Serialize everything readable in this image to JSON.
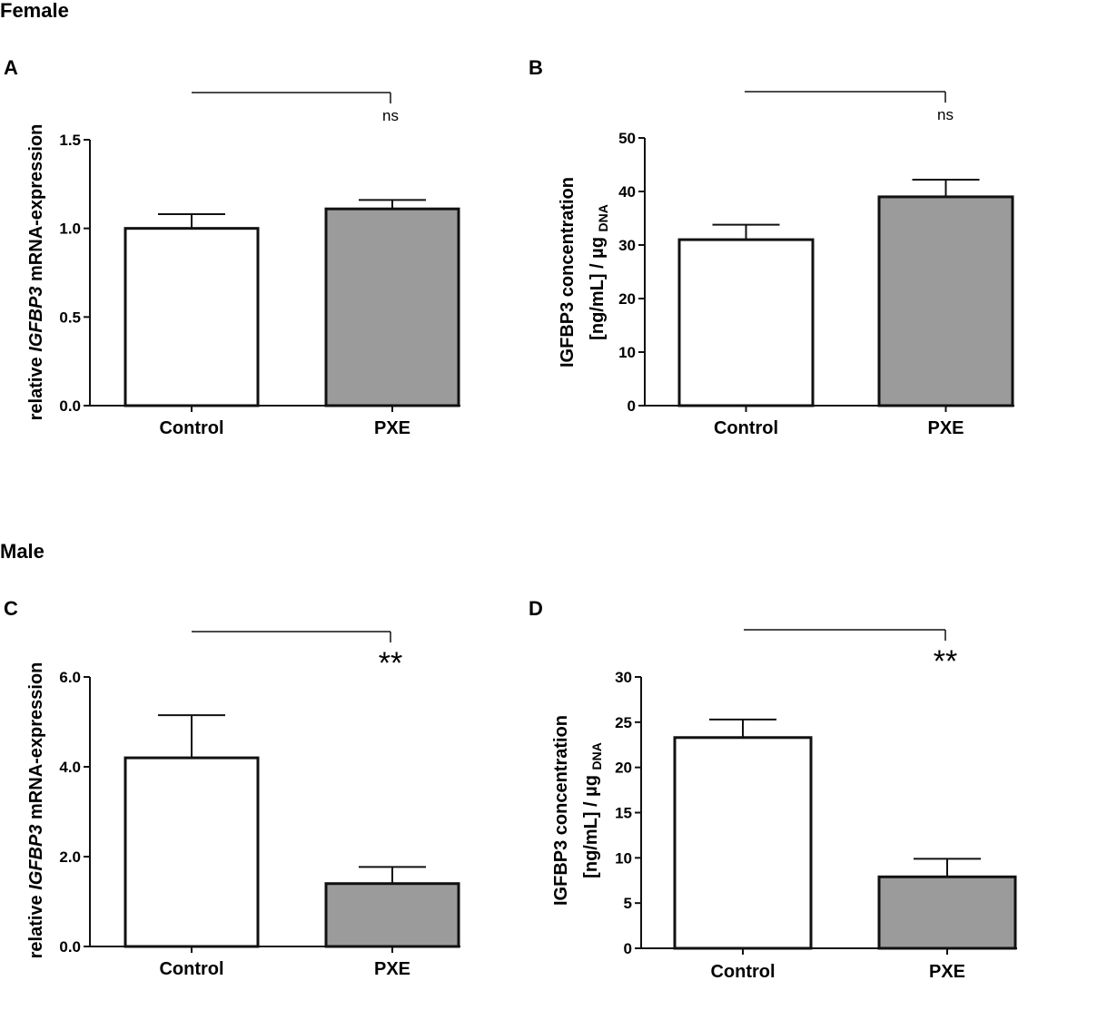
{
  "sections": {
    "female": "Female",
    "male": "Male"
  },
  "colors": {
    "control": "#ffffff",
    "pxe": "#9b9b9b",
    "stroke": "#111111"
  },
  "chart_data": [
    {
      "panel": "A",
      "type": "bar",
      "categories": [
        "Control",
        "PXE"
      ],
      "values": [
        1.0,
        1.11
      ],
      "errors": [
        0.08,
        0.05
      ],
      "ylim": [
        0,
        1.5
      ],
      "yticks": [
        "0.0",
        "0.5",
        "1.0",
        "1.5"
      ],
      "ylabel": {
        "prefix": "relative ",
        "italic": "IGFBP3",
        "suffix": " mRNA-expression"
      },
      "significance": "ns",
      "grid": false
    },
    {
      "panel": "B",
      "type": "bar",
      "categories": [
        "Control",
        "PXE"
      ],
      "values": [
        31.0,
        39.0
      ],
      "errors": [
        2.8,
        3.2
      ],
      "ylim": [
        0,
        50
      ],
      "yticks": [
        "0",
        "10",
        "20",
        "30",
        "40",
        "50"
      ],
      "ylabel": {
        "line1": "IGFBP3 concentration",
        "line2": "[ng/mL] / µg ",
        "subscript": "DNA"
      },
      "significance": "ns",
      "grid": false
    },
    {
      "panel": "C",
      "type": "bar",
      "categories": [
        "Control",
        "PXE"
      ],
      "values": [
        4.2,
        1.4
      ],
      "errors": [
        0.95,
        0.37
      ],
      "ylim": [
        0,
        6
      ],
      "yticks": [
        "0.0",
        "2.0",
        "4.0",
        "6.0"
      ],
      "ylabel": {
        "prefix": "relative ",
        "italic": "IGFBP3",
        "suffix": " mRNA-expression"
      },
      "significance": "**",
      "grid": false
    },
    {
      "panel": "D",
      "type": "bar",
      "categories": [
        "Control",
        "PXE"
      ],
      "values": [
        23.3,
        7.9
      ],
      "errors": [
        2.0,
        2.0
      ],
      "ylim": [
        0,
        30
      ],
      "yticks": [
        "0",
        "5",
        "10",
        "15",
        "20",
        "25",
        "30"
      ],
      "ylabel": {
        "line1": "IGFBP3 concentration",
        "line2": "[ng/mL] / µg ",
        "subscript": "DNA"
      },
      "significance": "**",
      "grid": false
    }
  ]
}
